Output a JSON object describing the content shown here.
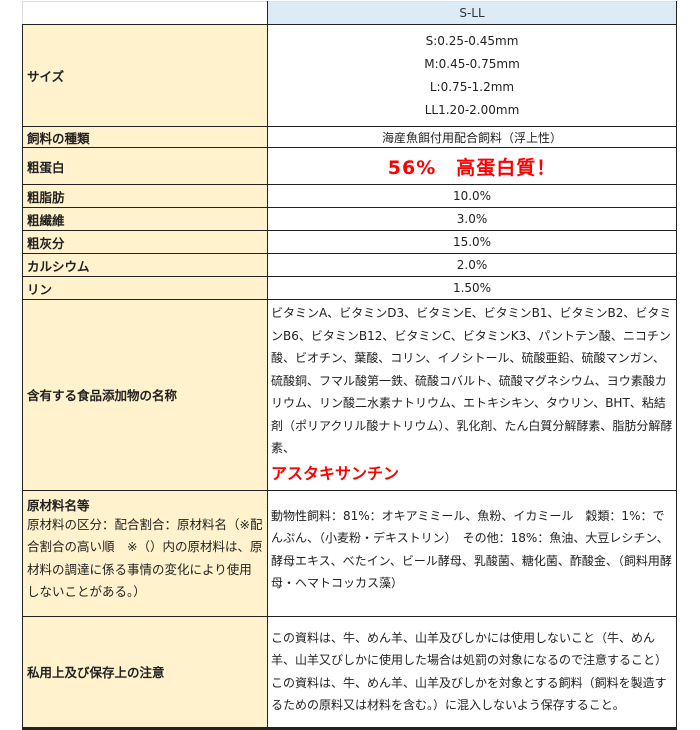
{
  "header": {
    "label": "",
    "product": "S-LL"
  },
  "rows": {
    "size": {
      "label": "サイズ",
      "values": [
        "S:0.25-0.45mm",
        "M:0.45-0.75mm",
        "L:0.75-1.2mm",
        "LL1.20-2.00mm"
      ]
    },
    "feed_type": {
      "label": "飼料の種類",
      "value": "海産魚餌付用配合飼料（浮上性）"
    },
    "protein": {
      "label": "粗蛋白",
      "value": "56%　高蛋白質！"
    },
    "fat": {
      "label": "粗脂肪",
      "value": "10.0%"
    },
    "fiber": {
      "label": "粗繊維",
      "value": "3.0%"
    },
    "ash": {
      "label": "粗灰分",
      "value": "15.0%"
    },
    "calcium": {
      "label": "カルシウム",
      "value": "2.0%"
    },
    "phosphorus": {
      "label": "リン",
      "value": "1.50%"
    },
    "additives": {
      "label": "含有する食品添加物の名称",
      "value": "ビタミンA、ビタミンD3、ビタミンE、ビタミンB1、ビタミンB2、ビタミンB6、ビタミンB12、ビタミンC、ビタミンK3、パントテン酸、ニコチン酸、ビオチン、葉酸、コリン、イノシトール、硫酸亜鉛、硫酸マンガン、硫酸銅、フマル酸第一鉄、硫酸コバルト、硫酸マグネシウム、ヨウ素酸カリウム、リン酸二水素ナトリウム、エトキシキン、タウリン、BHT、粘結剤（ポリアクリル酸ナトリウム）、乳化剤、たん白質分解酵素、脂肪分解酵素、",
      "highlight": "アスタキサンチン"
    },
    "ingredients": {
      "label": "原材料名等",
      "sublabel": "原材料の区分：配合割合：原材料名（※配合割合の高い順　※（）内の原材料は、原材料の調達に係る事情の変化により使用しないことがある。）",
      "value": "動物性飼料：81%：オキアミミール、魚粉、イカミール　穀類：1%：でんぷん、（小麦粉・デキストリン）　その他：18%：魚油、大豆レシチン、酵母エキス、べたイン、ビール酵母、乳酸菌、糖化菌、酢酸金、（飼料用酵母・ヘマトコッカス藻）"
    },
    "notes": {
      "label": "私用上及び保存上の注意",
      "value": "この資料は、牛、めん羊、山羊及びしかには使用しないこと（牛、めん羊、山羊又びしかに使用した場合は処罰の対象になるので注意すること）この資料は、牛、めん羊、山羊及びしかを対象とする飼料（飼料を製造するための原料又は材料を含む。）に混入しないよう保存すること。"
    }
  },
  "colors": {
    "label_bg": "#fff2cc",
    "header_bg": "#ddebf7",
    "highlight": "#ff0000"
  }
}
